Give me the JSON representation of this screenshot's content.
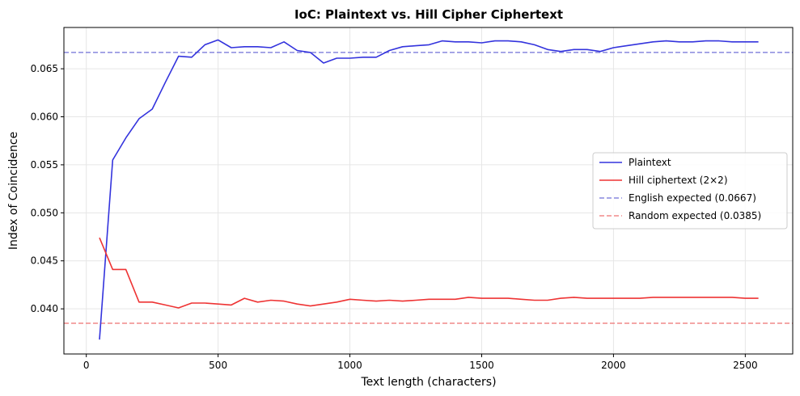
{
  "chart_data": {
    "type": "line",
    "title": "IoC: Plaintext vs. Hill Cipher Ciphertext",
    "xlabel": "Text length (characters)",
    "ylabel": "Index of Coincidence",
    "xlim": [
      -85,
      2680
    ],
    "ylim": [
      0.0353,
      0.0693
    ],
    "xticks": [
      0,
      500,
      1000,
      1500,
      2000,
      2500
    ],
    "xtick_labels": [
      "0",
      "500",
      "1000",
      "1500",
      "2000",
      "2500"
    ],
    "yticks": [
      0.04,
      0.045,
      0.05,
      0.055,
      0.06,
      0.065
    ],
    "ytick_labels": [
      "0.040",
      "0.045",
      "0.050",
      "0.055",
      "0.060",
      "0.065"
    ],
    "grid": true,
    "legend_position": "center-right",
    "x": [
      50,
      100,
      150,
      200,
      250,
      300,
      350,
      400,
      450,
      500,
      550,
      600,
      650,
      700,
      750,
      800,
      850,
      900,
      950,
      1000,
      1050,
      1100,
      1150,
      1200,
      1250,
      1300,
      1350,
      1400,
      1450,
      1500,
      1550,
      1600,
      1650,
      1700,
      1750,
      1800,
      1850,
      1900,
      1950,
      2000,
      2050,
      2100,
      2150,
      2200,
      2250,
      2300,
      2350,
      2400,
      2450,
      2500,
      2550
    ],
    "series": [
      {
        "name": "Plaintext",
        "color": "#3333dd",
        "style": "solid",
        "values": [
          0.0368,
          0.0555,
          0.0578,
          0.0598,
          0.0608,
          0.0636,
          0.0663,
          0.0662,
          0.0675,
          0.068,
          0.0672,
          0.0673,
          0.0673,
          0.0672,
          0.0678,
          0.0669,
          0.0667,
          0.0656,
          0.0661,
          0.0661,
          0.0662,
          0.0662,
          0.0669,
          0.0673,
          0.0674,
          0.0675,
          0.0679,
          0.0678,
          0.0678,
          0.0677,
          0.0679,
          0.0679,
          0.0678,
          0.0675,
          0.067,
          0.0668,
          0.067,
          0.067,
          0.0668,
          0.0672,
          0.0674,
          0.0676,
          0.0678,
          0.0679,
          0.0678,
          0.0678,
          0.0679,
          0.0679,
          0.0678,
          0.0678,
          0.0678
        ]
      },
      {
        "name": "Hill ciphertext (2×2)",
        "color": "#ee3333",
        "style": "solid",
        "values": [
          0.0474,
          0.0441,
          0.0441,
          0.0407,
          0.0407,
          0.0404,
          0.0401,
          0.0406,
          0.0406,
          0.0405,
          0.0404,
          0.0411,
          0.0407,
          0.0409,
          0.0408,
          0.0405,
          0.0403,
          0.0405,
          0.0407,
          0.041,
          0.0409,
          0.0408,
          0.0409,
          0.0408,
          0.0409,
          0.041,
          0.041,
          0.041,
          0.0412,
          0.0411,
          0.0411,
          0.0411,
          0.041,
          0.0409,
          0.0409,
          0.0411,
          0.0412,
          0.0411,
          0.0411,
          0.0411,
          0.0411,
          0.0411,
          0.0412,
          0.0412,
          0.0412,
          0.0412,
          0.0412,
          0.0412,
          0.0412,
          0.0411,
          0.0411
        ]
      }
    ],
    "reference_lines": [
      {
        "name": "English expected (0.0667)",
        "value": 0.0667,
        "color": "#8888dd",
        "style": "dashed"
      },
      {
        "name": "Random expected (0.0385)",
        "value": 0.0385,
        "color": "#f08888",
        "style": "dashed"
      }
    ]
  }
}
